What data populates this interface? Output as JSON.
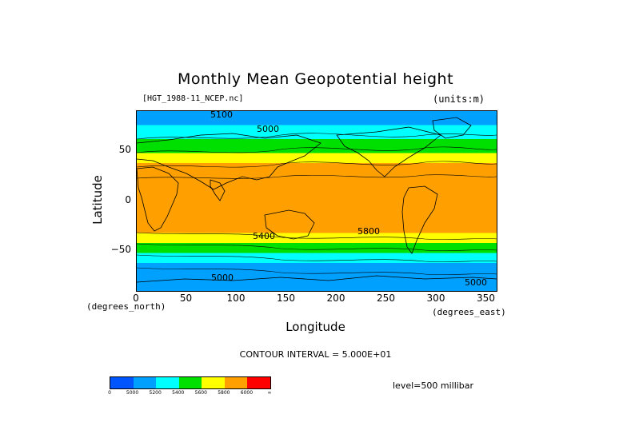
{
  "chart_data": {
    "type": "heatmap",
    "title": "Monthly Mean Geopotential height",
    "dataset_label": "[HGT_1988-11_NCEP.nc]",
    "units_label": "(units:m)",
    "xlabel": "Longitude",
    "ylabel": "Latitude",
    "x_unit_label": "(degrees_north)",
    "y_unit_label": "(degrees_east)",
    "xlim": [
      0,
      360
    ],
    "ylim": [
      -90,
      90
    ],
    "x_ticks": [
      "0",
      "50",
      "100",
      "150",
      "200",
      "250",
      "300",
      "350"
    ],
    "y_ticks": [
      "50",
      "0",
      "−50"
    ],
    "contour_interval": "CONTOUR INTERVAL = 5.000E+01",
    "level": "level=500 millibar",
    "colorbar": {
      "labels": [
        "0",
        "5000",
        "5200",
        "5400",
        "5600",
        "5800",
        "6000",
        "∞"
      ],
      "colors": [
        "#0055ff",
        "#00a0ff",
        "#00ffff",
        "#00e000",
        "#ffff00",
        "#ffa000",
        "#ff0000"
      ]
    },
    "contour_labels": [
      "5100",
      "5000",
      "5800",
      "5000",
      "5000",
      "5400"
    ],
    "bands": [
      {
        "lat_from": 90,
        "lat_to": 76,
        "value": 5100
      },
      {
        "lat_from": 76,
        "lat_to": 62,
        "value": 5300
      },
      {
        "lat_from": 62,
        "lat_to": 48,
        "value": 5500
      },
      {
        "lat_from": 48,
        "lat_to": 38,
        "value": 5700
      },
      {
        "lat_from": 38,
        "lat_to": 28,
        "value": 5850
      },
      {
        "lat_from": 28,
        "lat_to": -32,
        "value": 5900
      },
      {
        "lat_from": -32,
        "lat_to": -42,
        "value": 5700
      },
      {
        "lat_from": -42,
        "lat_to": -52,
        "value": 5500
      },
      {
        "lat_from": -52,
        "lat_to": -62,
        "value": 5300
      },
      {
        "lat_from": -62,
        "lat_to": -90,
        "value": 5100
      }
    ]
  }
}
